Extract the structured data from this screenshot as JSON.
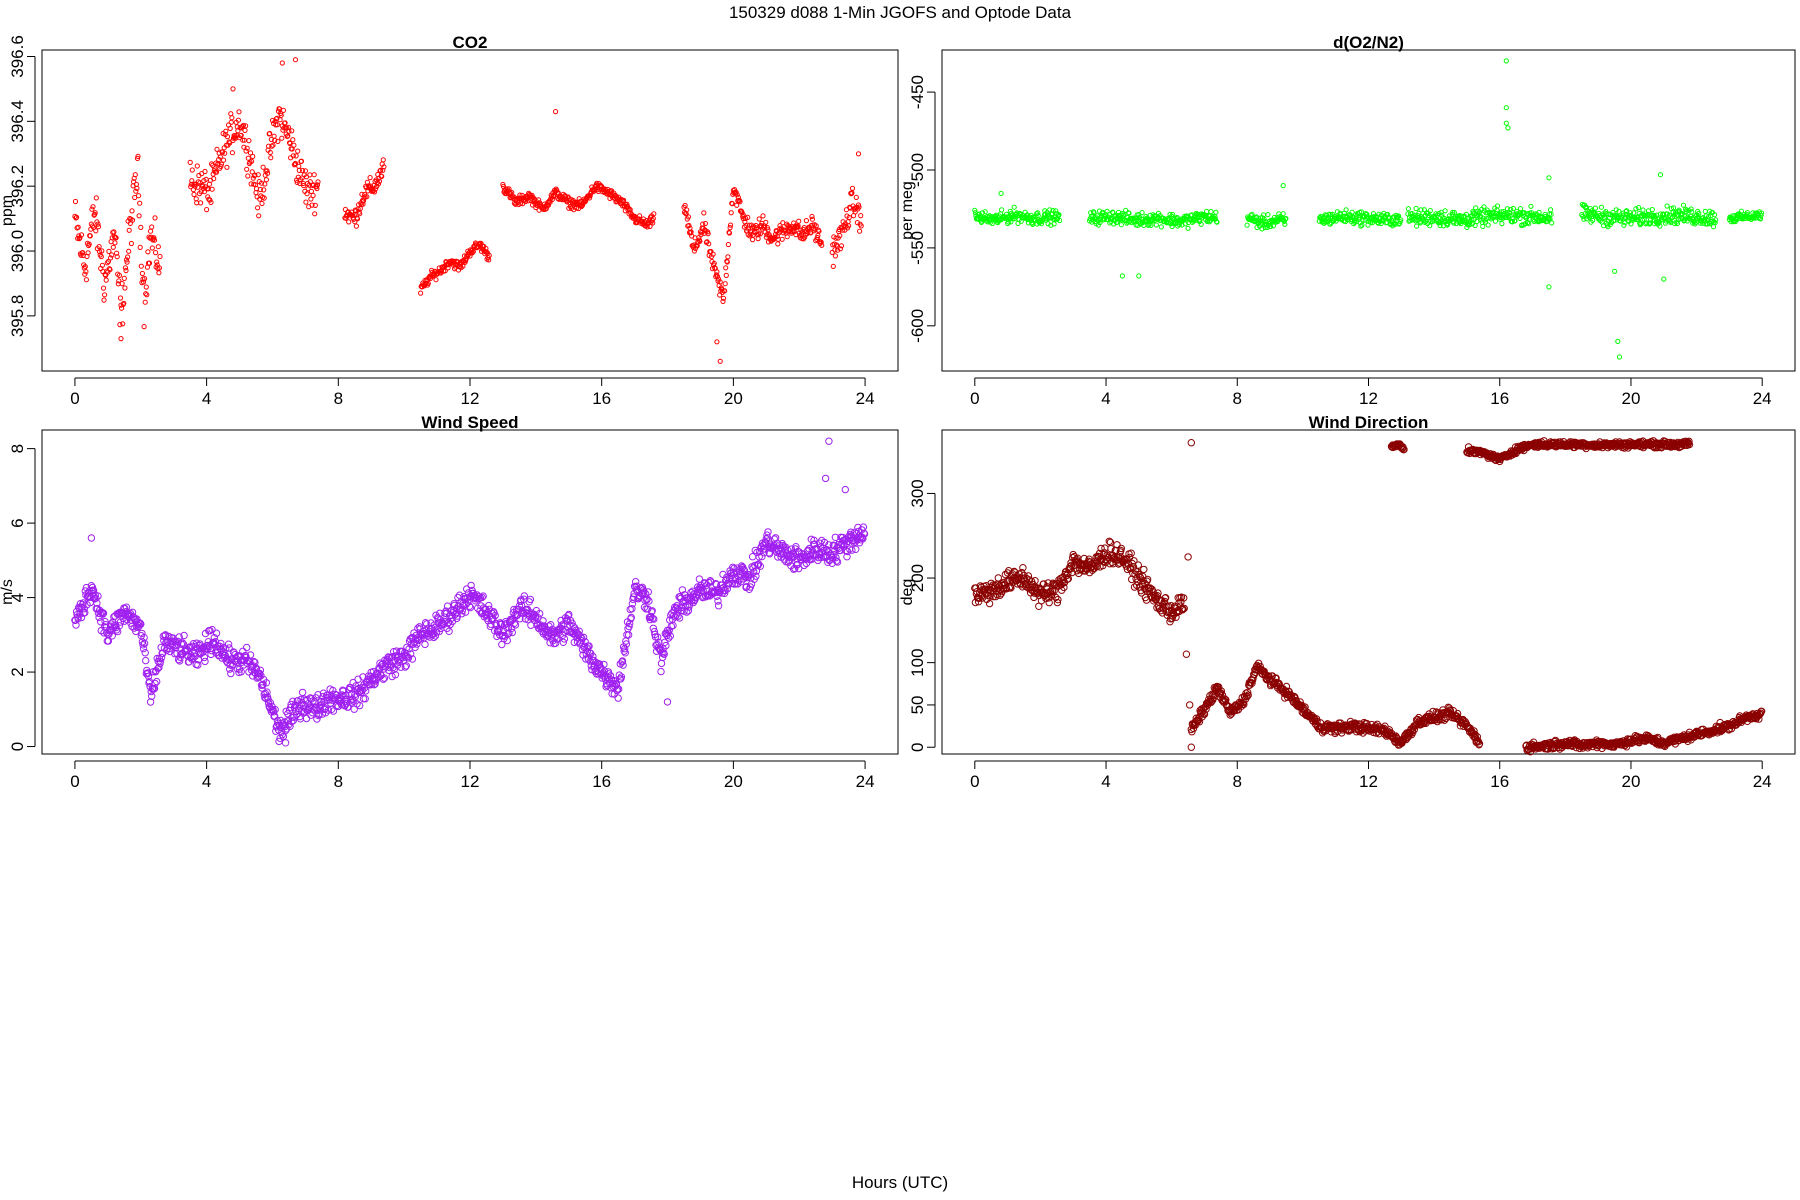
{
  "figure": {
    "title": "150329   d088   1-Min  JGOFS and Optode Data",
    "xlabel": "Hours (UTC)"
  },
  "chart_data": [
    {
      "id": "co2",
      "type": "scatter",
      "title": "CO2",
      "ylabel": "ppm",
      "xlim": [
        -1,
        25
      ],
      "ylim": [
        395.63,
        396.62
      ],
      "xticks": [
        0,
        4,
        8,
        12,
        16,
        20,
        24
      ],
      "yticks": [
        395.8,
        396.0,
        396.2,
        396.4,
        396.6
      ],
      "ytick_labels": [
        "395.8",
        "396.0",
        "396.2",
        "396.4",
        "396.6"
      ],
      "color": "#ff0000",
      "marker_radius_hint": "small",
      "segments": [
        {
          "x": [
            0.0,
            0.3,
            0.6,
            0.9,
            1.2,
            1.4,
            1.6,
            1.9,
            2.1,
            2.3,
            2.6
          ],
          "y": [
            396.1,
            395.95,
            396.12,
            395.9,
            396.05,
            395.8,
            396.0,
            396.25,
            395.85,
            396.05,
            395.95
          ],
          "jitter": 0.12
        },
        {
          "x": [
            3.5,
            3.8,
            4.1,
            4.4,
            4.7,
            5.0,
            5.3,
            5.6,
            5.9,
            6.2,
            6.5,
            6.8,
            7.1,
            7.4
          ],
          "y": [
            396.22,
            396.2,
            396.18,
            396.28,
            396.35,
            396.4,
            396.3,
            396.15,
            396.3,
            396.42,
            396.35,
            396.25,
            396.18,
            396.2
          ],
          "jitter": 0.1
        },
        {
          "x": [
            8.2,
            8.5,
            8.8,
            9.1,
            9.4
          ],
          "y": [
            396.12,
            396.1,
            396.18,
            396.2,
            396.26
          ],
          "jitter": 0.05
        },
        {
          "x": [
            10.5,
            10.8,
            11.1,
            11.4,
            11.7,
            12.0,
            12.3,
            12.6
          ],
          "y": [
            395.88,
            395.92,
            395.94,
            395.97,
            395.95,
            396.0,
            396.02,
            395.98
          ],
          "jitter": 0.025
        },
        {
          "x": [
            13.0,
            13.4,
            13.8,
            14.2,
            14.6,
            15.0,
            15.4,
            15.8,
            16.2,
            16.6,
            17.0,
            17.4,
            17.6
          ],
          "y": [
            396.2,
            396.15,
            396.17,
            396.13,
            396.18,
            396.15,
            396.14,
            396.2,
            396.18,
            396.15,
            396.1,
            396.08,
            396.1
          ],
          "jitter": 0.025
        },
        {
          "x": [
            18.5,
            18.8,
            19.1,
            19.4,
            19.7,
            20.0,
            20.3,
            20.6,
            20.9,
            21.2,
            21.5,
            21.8,
            22.1,
            22.4,
            22.7
          ],
          "y": [
            396.15,
            396.0,
            396.08,
            395.95,
            395.85,
            396.2,
            396.1,
            396.05,
            396.08,
            396.04,
            396.06,
            396.08,
            396.05,
            396.08,
            396.02
          ],
          "jitter": 0.05
        },
        {
          "x": [
            23.0,
            23.3,
            23.6,
            23.9
          ],
          "y": [
            396.0,
            396.05,
            396.15,
            396.1
          ],
          "jitter": 0.07
        }
      ],
      "outliers": [
        {
          "x": 1.4,
          "y": 395.73
        },
        {
          "x": 6.3,
          "y": 396.58
        },
        {
          "x": 6.7,
          "y": 396.59
        },
        {
          "x": 14.6,
          "y": 396.43
        },
        {
          "x": 19.6,
          "y": 395.66
        },
        {
          "x": 19.5,
          "y": 395.72
        },
        {
          "x": 23.8,
          "y": 396.3
        },
        {
          "x": 4.8,
          "y": 396.5
        }
      ]
    },
    {
      "id": "o2n2",
      "type": "scatter",
      "title": "d(O2/N2)",
      "ylabel": "per meg",
      "xlim": [
        -1,
        25
      ],
      "ylim": [
        -629,
        -423
      ],
      "xticks": [
        0,
        4,
        8,
        12,
        16,
        20,
        24
      ],
      "yticks": [
        -600,
        -550,
        -500,
        -450
      ],
      "ytick_labels": [
        "-600",
        "-550",
        "-500",
        "-450"
      ],
      "color": "#00ff00",
      "segments": [
        {
          "x": [
            0.0,
            0.6,
            1.2,
            1.8,
            2.4,
            2.6
          ],
          "y": [
            -530,
            -532,
            -529,
            -531,
            -530,
            -531
          ],
          "jitter": 7
        },
        {
          "x": [
            3.5,
            4.2,
            4.9,
            5.6,
            6.3,
            7.0,
            7.4
          ],
          "y": [
            -531,
            -530,
            -532,
            -531,
            -533,
            -530,
            -531
          ],
          "jitter": 7
        },
        {
          "x": [
            8.3,
            8.8,
            9.3,
            9.5
          ],
          "y": [
            -531,
            -534,
            -532,
            -533
          ],
          "jitter": 7
        },
        {
          "x": [
            10.5,
            11.2,
            11.9,
            12.6,
            13.0
          ],
          "y": [
            -532,
            -530,
            -531,
            -532,
            -531
          ],
          "jitter": 7
        },
        {
          "x": [
            13.2,
            14.0,
            14.8,
            15.6,
            16.4,
            17.2,
            17.6
          ],
          "y": [
            -531,
            -530,
            -532,
            -530,
            -529,
            -530,
            -531
          ],
          "jitter": 9
        },
        {
          "x": [
            18.5,
            19.2,
            19.9,
            20.6,
            21.3,
            22.0,
            22.6
          ],
          "y": [
            -528,
            -530,
            -531,
            -530,
            -529,
            -530,
            -531
          ],
          "jitter": 9
        },
        {
          "x": [
            23.0,
            23.5,
            24.0
          ],
          "y": [
            -531,
            -530,
            -529
          ],
          "jitter": 5
        }
      ],
      "outliers": [
        {
          "x": 16.2,
          "y": -430
        },
        {
          "x": 16.2,
          "y": -460
        },
        {
          "x": 16.2,
          "y": -470
        },
        {
          "x": 16.25,
          "y": -473
        },
        {
          "x": 19.6,
          "y": -610
        },
        {
          "x": 19.65,
          "y": -620
        },
        {
          "x": 17.5,
          "y": -575
        },
        {
          "x": 17.5,
          "y": -505
        },
        {
          "x": 20.9,
          "y": -503
        },
        {
          "x": 21.0,
          "y": -570
        },
        {
          "x": 4.5,
          "y": -568
        },
        {
          "x": 5.0,
          "y": -568
        },
        {
          "x": 9.4,
          "y": -510
        },
        {
          "x": 0.8,
          "y": -515
        },
        {
          "x": 19.5,
          "y": -565
        }
      ]
    },
    {
      "id": "wind_speed",
      "type": "scatter",
      "title": "Wind Speed",
      "ylabel": "m/s",
      "xlim": [
        -1,
        25
      ],
      "ylim": [
        -0.2,
        8.5
      ],
      "xticks": [
        0,
        4,
        8,
        12,
        16,
        20,
        24
      ],
      "yticks": [
        0,
        2,
        4,
        6,
        8
      ],
      "ytick_labels": [
        "0",
        "2",
        "4",
        "6",
        "8"
      ],
      "color": "#a020f0",
      "marker_radius_hint": "large",
      "segments": [
        {
          "x": [
            0,
            0.5,
            1.0,
            1.5,
            2.0,
            2.3,
            2.7,
            3.2,
            3.7,
            4.2,
            4.7,
            5.2,
            5.6,
            5.9,
            6.2,
            6.5,
            6.9,
            7.3,
            7.7,
            8.1,
            8.6,
            9.0,
            9.5,
            10.0,
            10.5,
            11.0,
            11.5,
            12.0,
            12.5,
            13.0,
            13.5,
            14.0,
            14.5,
            15.0,
            15.5,
            16.0,
            16.5,
            17.0,
            17.4,
            17.8,
            18.2,
            18.6,
            19.0,
            19.5,
            20.0,
            20.5,
            21.0,
            21.5,
            22.0,
            22.5,
            23.0,
            23.5,
            24.0
          ],
          "y": [
            3.3,
            4.3,
            3.0,
            3.6,
            3.2,
            1.3,
            2.8,
            2.6,
            2.4,
            2.9,
            2.3,
            2.3,
            1.9,
            1.2,
            0.4,
            0.7,
            1.2,
            1.0,
            1.3,
            1.3,
            1.4,
            1.8,
            2.2,
            2.4,
            3.0,
            3.2,
            3.6,
            4.1,
            3.6,
            3.0,
            3.7,
            3.5,
            2.9,
            3.3,
            2.6,
            2.0,
            1.6,
            4.2,
            4.0,
            2.3,
            3.6,
            3.9,
            4.2,
            4.1,
            4.7,
            4.5,
            5.5,
            5.2,
            5.0,
            5.3,
            5.2,
            5.5,
            5.8
          ],
          "jitter": 0.55
        }
      ],
      "outliers": [
        {
          "x": 0.5,
          "y": 5.6
        },
        {
          "x": 22.9,
          "y": 8.2
        },
        {
          "x": 22.8,
          "y": 7.2
        },
        {
          "x": 23.4,
          "y": 6.9
        },
        {
          "x": 18.0,
          "y": 1.2
        },
        {
          "x": 6.4,
          "y": 0.1
        }
      ]
    },
    {
      "id": "wind_direction",
      "type": "scatter",
      "title": "Wind Direction",
      "ylabel": "deg",
      "xlim": [
        -1,
        25
      ],
      "ylim": [
        -8,
        375
      ],
      "xticks": [
        0,
        4,
        8,
        12,
        16,
        20,
        24
      ],
      "yticks": [
        0,
        50,
        100,
        200,
        300
      ],
      "ytick_labels": [
        "0",
        "50",
        "100",
        "200",
        "300"
      ],
      "color": "#8b0000",
      "marker_radius_hint": "large",
      "segments": [
        {
          "x": [
            0,
            0.5,
            1.0,
            1.5,
            2.0,
            2.5,
            3.0,
            3.5,
            4.0,
            4.5,
            5.0,
            5.5,
            6.0,
            6.4
          ],
          "y": [
            180,
            185,
            195,
            200,
            180,
            185,
            220,
            210,
            230,
            225,
            200,
            175,
            160,
            170
          ],
          "jitter": 22
        },
        {
          "x": [
            6.6,
            7.0,
            7.4,
            7.8,
            8.2,
            8.6,
            9.0,
            9.5,
            10.0,
            10.5,
            11.0,
            11.5,
            12.0,
            12.5,
            13.0,
            13.5,
            14.0,
            14.5,
            15.0,
            15.4
          ],
          "y": [
            20,
            45,
            70,
            40,
            55,
            95,
            80,
            65,
            45,
            25,
            22,
            25,
            22,
            20,
            5,
            30,
            35,
            40,
            25,
            5
          ],
          "jitter": 10
        },
        {
          "x": [
            16.8,
            17.5,
            18.0,
            18.5,
            19.0,
            19.5,
            20.0,
            20.5,
            21.0,
            21.5,
            22.0,
            22.5,
            23.0,
            23.5,
            24.0
          ],
          "y": [
            0,
            2,
            5,
            2,
            5,
            3,
            8,
            10,
            5,
            10,
            15,
            20,
            25,
            35,
            40
          ],
          "jitter": 8
        },
        {
          "x": [
            15.0,
            15.5,
            16.0,
            16.5,
            17.0,
            17.5,
            18.0,
            18.5,
            19.0,
            20.0,
            21.0,
            21.8
          ],
          "y": [
            350,
            348,
            340,
            352,
            358,
            358,
            358,
            358,
            357,
            358,
            358,
            358
          ],
          "jitter": 6
        },
        {
          "x": [
            12.7,
            12.9,
            13.1
          ],
          "y": [
            355,
            358,
            352
          ],
          "jitter": 4
        }
      ],
      "outliers": [
        {
          "x": 6.6,
          "y": 360
        },
        {
          "x": 6.6,
          "y": 0
        },
        {
          "x": 6.5,
          "y": 225
        },
        {
          "x": 6.55,
          "y": 50
        },
        {
          "x": 6.45,
          "y": 110
        }
      ]
    }
  ]
}
